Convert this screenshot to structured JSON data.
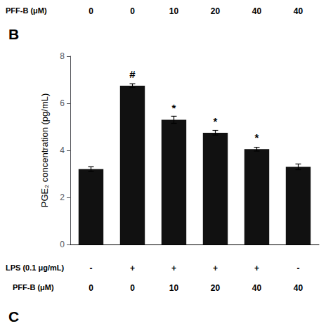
{
  "chart_data": {
    "type": "bar",
    "categories": [
      null,
      null,
      null,
      null,
      null,
      null
    ],
    "values": [
      3.2,
      6.75,
      5.3,
      4.75,
      4.05,
      3.3
    ],
    "errors": [
      0.1,
      0.08,
      0.15,
      0.1,
      0.08,
      0.12
    ],
    "color": "#111111",
    "ylabel": "PGE₂ concentration (pg/mL)",
    "ylim": [
      0,
      8
    ],
    "yticks": [
      0,
      2,
      4,
      6,
      8
    ],
    "grid": false,
    "tick_labels": "y",
    "annotations": [
      {
        "index": 1,
        "text": "#"
      },
      {
        "index": 2,
        "text": "*"
      },
      {
        "index": 3,
        "text": "*"
      },
      {
        "index": 4,
        "text": "*"
      }
    ],
    "panel_labels": [
      "B",
      "C"
    ],
    "top_row": {
      "label": "PFF-B (μM)",
      "values": [
        "0",
        "0",
        "10",
        "20",
        "40",
        "40"
      ]
    },
    "bottom_rows": [
      {
        "label": "LPS (0.1 μg/mL)",
        "values": [
          "-",
          "+",
          "+",
          "+",
          "+",
          "-"
        ]
      },
      {
        "label": "PFF-B (μM)",
        "values": [
          "0",
          "0",
          "10",
          "20",
          "40",
          "40"
        ]
      }
    ]
  }
}
